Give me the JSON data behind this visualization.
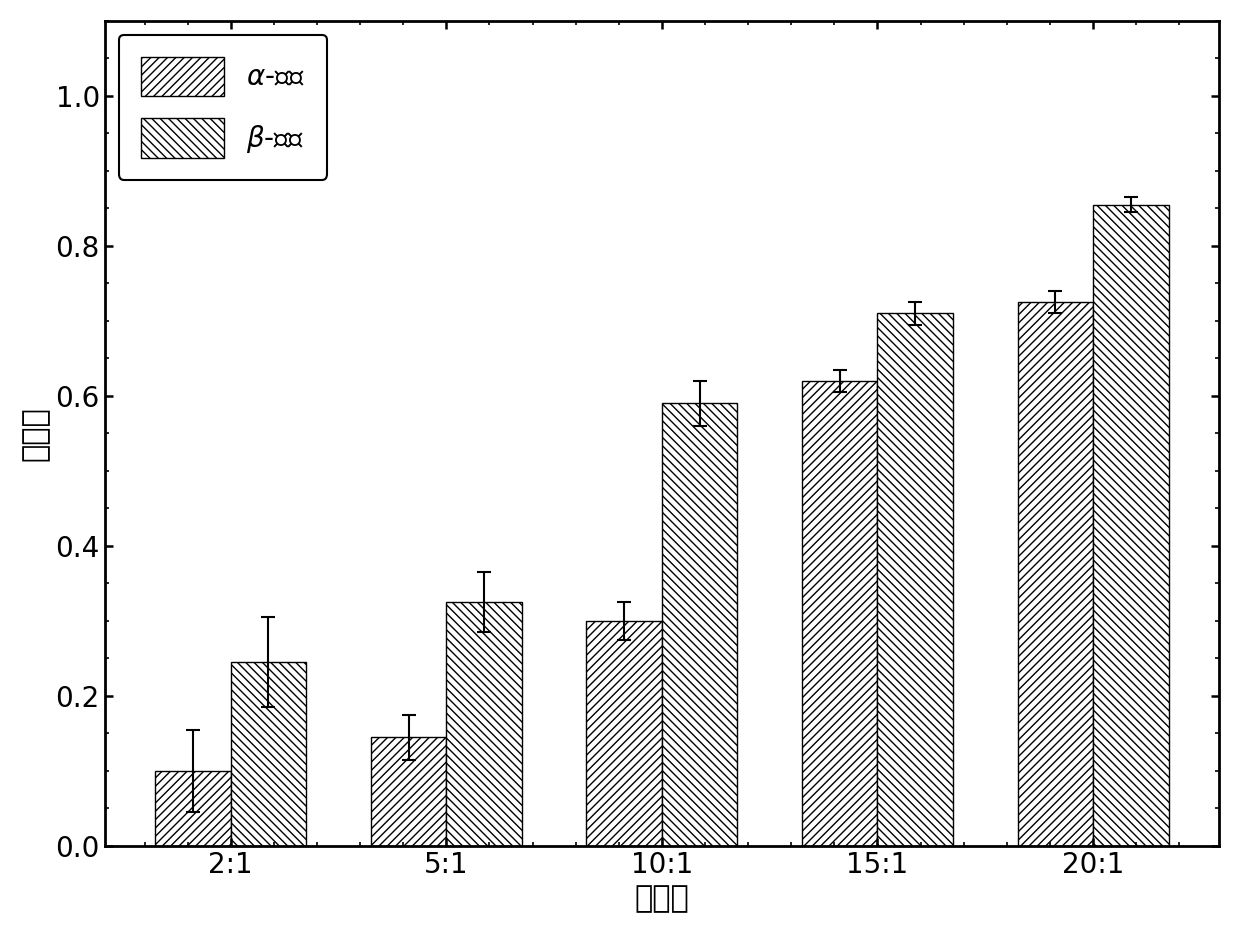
{
  "categories": [
    "2:1",
    "5:1",
    "10:1",
    "15:1",
    "20:1"
  ],
  "alpha_values": [
    0.1,
    0.145,
    0.3,
    0.62,
    0.725
  ],
  "beta_values": [
    0.245,
    0.325,
    0.59,
    0.71,
    0.855
  ],
  "alpha_errors": [
    0.055,
    0.03,
    0.025,
    0.015,
    0.015
  ],
  "beta_errors": [
    0.06,
    0.04,
    0.03,
    0.015,
    0.01
  ],
  "xlabel": "物料比",
  "ylabel": "降解率",
  "ylim": [
    0.0,
    1.1
  ],
  "yticks": [
    0.0,
    0.2,
    0.4,
    0.6,
    0.8,
    1.0
  ],
  "ytick_labels": [
    "0.0",
    "0.2",
    "0.4",
    "0.6",
    "0.8",
    "1.0"
  ],
  "legend_alpha": "$\\alpha$-硫丹",
  "legend_beta": "$\\beta$-硫丹",
  "bar_width": 0.35,
  "facecolor": "white",
  "edgecolor": "black",
  "hatch_alpha": "////",
  "hatch_beta": "\\\\\\\\",
  "label_fontsize": 22,
  "tick_fontsize": 20,
  "legend_fontsize": 20,
  "bar_linewidth": 1.0,
  "spine_linewidth": 2.0
}
